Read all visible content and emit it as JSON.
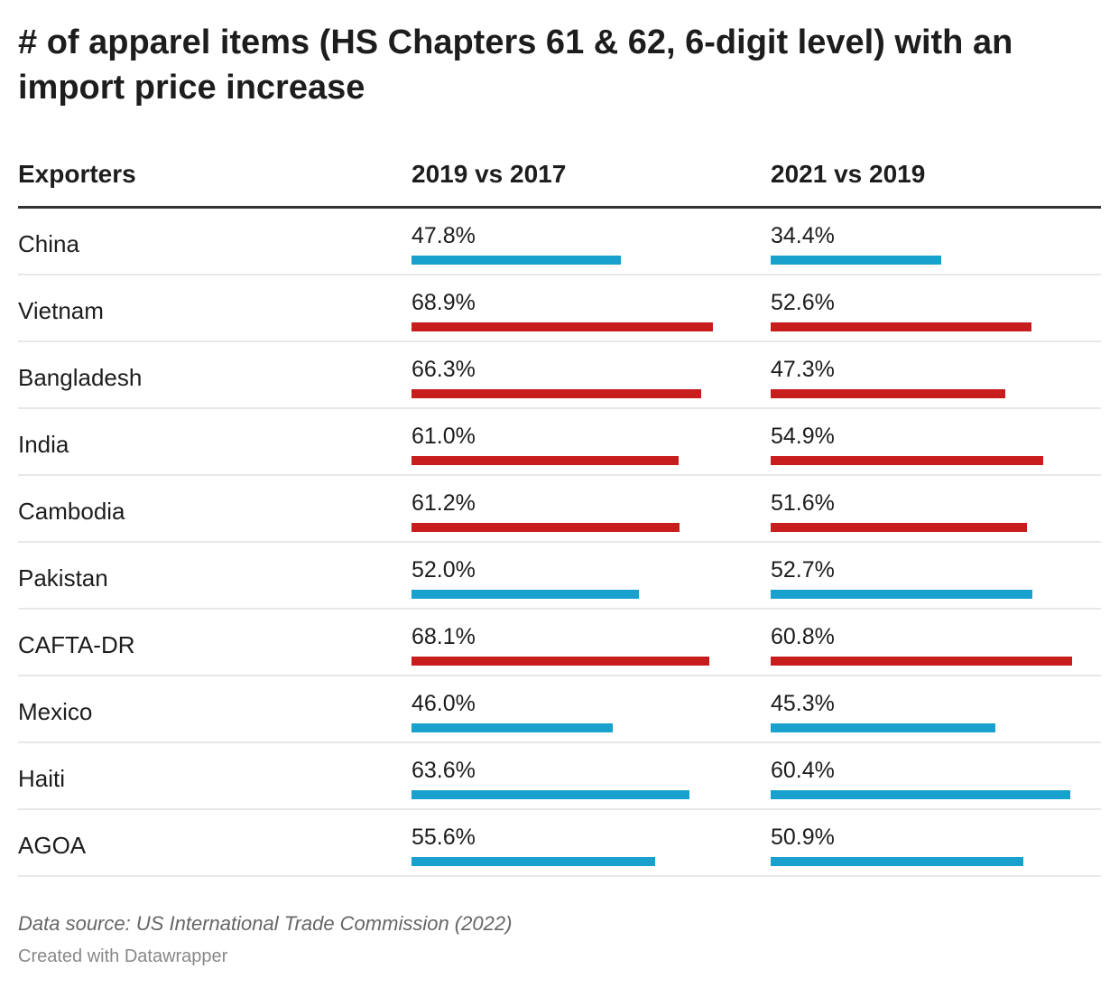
{
  "title": "# of apparel items (HS Chapters 61 & 62, 6-digit level) with an import price increase",
  "colors": {
    "red": "#c71e1d",
    "blue": "#18a1cd"
  },
  "chart_data": {
    "type": "table",
    "columns": [
      "Exporters",
      "2019 vs 2017",
      "2021 vs 2019"
    ],
    "rows": [
      {
        "exporter": "China",
        "v1": 47.8,
        "c1": "blue",
        "v2": 34.4,
        "c2": "blue"
      },
      {
        "exporter": "Vietnam",
        "v1": 68.9,
        "c1": "red",
        "v2": 52.6,
        "c2": "red"
      },
      {
        "exporter": "Bangladesh",
        "v1": 66.3,
        "c1": "red",
        "v2": 47.3,
        "c2": "red"
      },
      {
        "exporter": "India",
        "v1": 61.0,
        "c1": "red",
        "v2": 54.9,
        "c2": "red"
      },
      {
        "exporter": "Cambodia",
        "v1": 61.2,
        "c1": "red",
        "v2": 51.6,
        "c2": "red"
      },
      {
        "exporter": "Pakistan",
        "v1": 52.0,
        "c1": "blue",
        "v2": 52.7,
        "c2": "blue"
      },
      {
        "exporter": "CAFTA-DR",
        "v1": 68.1,
        "c1": "red",
        "v2": 60.8,
        "c2": "red"
      },
      {
        "exporter": "Mexico",
        "v1": 46.0,
        "c1": "blue",
        "v2": 45.3,
        "c2": "blue"
      },
      {
        "exporter": "Haiti",
        "v1": 63.6,
        "c1": "blue",
        "v2": 60.4,
        "c2": "blue"
      },
      {
        "exporter": "AGOA",
        "v1": 55.6,
        "c1": "blue",
        "v2": 50.9,
        "c2": "blue"
      }
    ]
  },
  "footer": {
    "source": "Data source: US International Trade Commission (2022)",
    "credit": "Created with Datawrapper"
  }
}
